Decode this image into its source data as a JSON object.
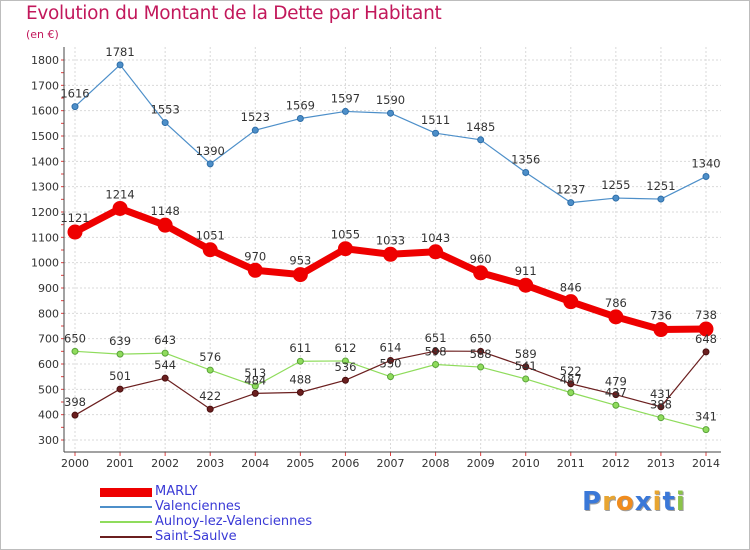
{
  "title": "Evolution du Montant de la Dette par Habitant",
  "unit": "(en €)",
  "logo": {
    "text": "Proxiti",
    "colors": [
      "#3a78d8",
      "#e8a531",
      "#f08c1e",
      "#3a78d8",
      "#e8a531",
      "#3a78d8",
      "#8bc34a"
    ]
  },
  "chart_data": {
    "type": "line",
    "title": "Evolution du Montant de la Dette par Habitant",
    "ylabel": "(en €)",
    "xlabel": "",
    "ylim": [
      300,
      1800
    ],
    "yticks": [
      300,
      400,
      500,
      600,
      700,
      800,
      900,
      1000,
      1100,
      1200,
      1300,
      1400,
      1500,
      1600,
      1700,
      1800
    ],
    "x": [
      "2000",
      "2001",
      "2002",
      "2003",
      "2004",
      "2005",
      "2006",
      "2007",
      "2008",
      "2009",
      "2010",
      "2011",
      "2012",
      "2013",
      "2014"
    ],
    "grid": true,
    "legend_position": "bottom-left",
    "series": [
      {
        "name": "MARLY",
        "color": "#ee0000",
        "values": [
          1121,
          1214,
          1148,
          1051,
          970,
          953,
          1055,
          1033,
          1043,
          960,
          911,
          846,
          786,
          736,
          738
        ]
      },
      {
        "name": "Valenciennes",
        "color": "#4d8fc9",
        "values": [
          1616,
          1781,
          1553,
          1390,
          1523,
          1569,
          1597,
          1590,
          1511,
          1485,
          1356,
          1237,
          1255,
          1251,
          1340
        ]
      },
      {
        "name": "Aulnoy-lez-Valenciennes",
        "color": "#8fdc5c",
        "values": [
          650,
          639,
          643,
          576,
          513,
          611,
          612,
          550,
          598,
          588,
          541,
          487,
          437,
          388,
          341
        ]
      },
      {
        "name": "Saint-Saulve",
        "color": "#6b1f1f",
        "values": [
          398,
          501,
          544,
          422,
          484,
          488,
          536,
          614,
          651,
          650,
          589,
          522,
          479,
          431,
          648
        ]
      }
    ]
  }
}
